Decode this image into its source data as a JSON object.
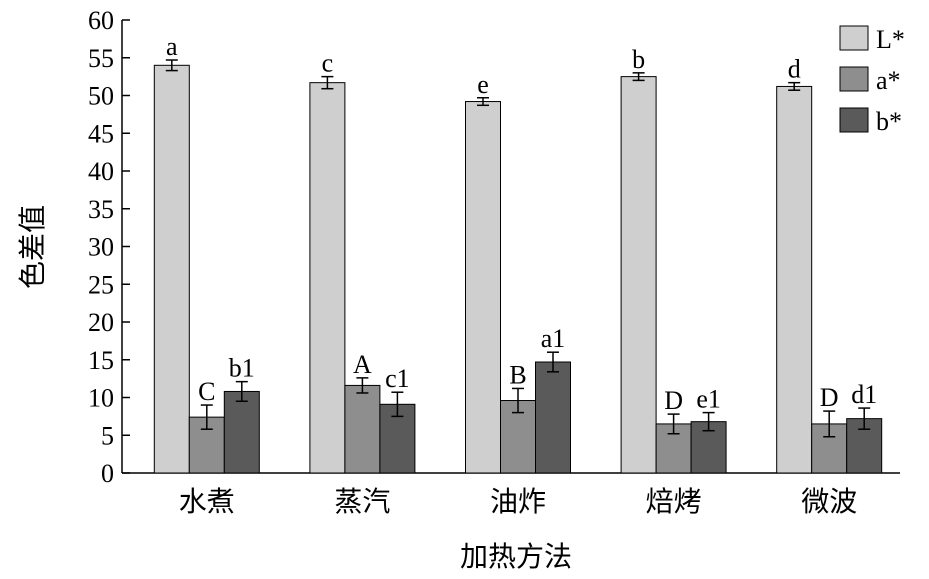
{
  "chart_data": {
    "type": "bar",
    "xlabel": "加热方法",
    "ylabel": "色差值",
    "ylim": [
      0,
      60
    ],
    "yticks": [
      0,
      5,
      10,
      15,
      20,
      25,
      30,
      35,
      40,
      45,
      50,
      55,
      60
    ],
    "categories": [
      "水煮",
      "蒸汽",
      "油炸",
      "焙烤",
      "微波"
    ],
    "legend_position": "top-right",
    "grid": false,
    "series": [
      {
        "name": "L*",
        "color": "#cfcfcf",
        "values": [
          54.0,
          51.7,
          49.2,
          52.5,
          51.2
        ],
        "errors": [
          0.7,
          0.8,
          0.5,
          0.5,
          0.5
        ],
        "labels": [
          "a",
          "c",
          "e",
          "b",
          "d"
        ]
      },
      {
        "name": "a*",
        "color": "#8e8e8e",
        "values": [
          7.4,
          11.6,
          9.6,
          6.5,
          6.5
        ],
        "errors": [
          1.6,
          1.0,
          1.6,
          1.3,
          1.7
        ],
        "labels": [
          "C",
          "A",
          "B",
          "D",
          "D"
        ]
      },
      {
        "name": "b*",
        "color": "#5a5a5a",
        "values": [
          10.8,
          9.1,
          14.7,
          6.8,
          7.2
        ],
        "errors": [
          1.3,
          1.6,
          1.3,
          1.2,
          1.4
        ],
        "labels": [
          "b1",
          "c1",
          "a1",
          "e1",
          "d1"
        ]
      }
    ]
  }
}
